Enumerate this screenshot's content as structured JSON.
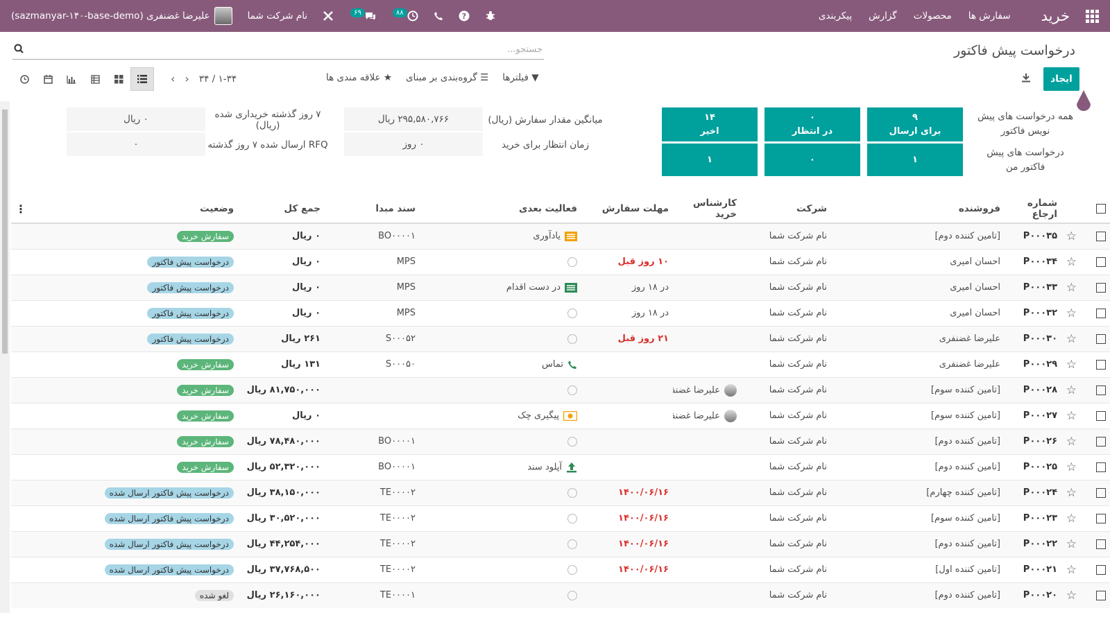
{
  "navbar": {
    "brand": "خرید",
    "menu": [
      "سفارش ها",
      "محصولات",
      "گزارش",
      "پیکربندی"
    ],
    "company": "نام شرکت شما",
    "user": "علیرضا غضنفری (sazmanyar-۱۴۰-base-demo)",
    "activity_count": "۸۸",
    "messages_count": "۶۹"
  },
  "control": {
    "title": "درخواست پیش فاکتور",
    "search_placeholder": "جستجو...",
    "create_label": "ایجاد",
    "filters_label": "فیلترها",
    "groupby_label": "گروه‌بندی بر مبنای",
    "favorites_label": "علاقه مندی ها",
    "pager": "۱-۳۴ / ۳۴"
  },
  "dashboard": {
    "label_all": "همه درخواست های پیش نویس فاکتور",
    "label_mine": "درخواست های پیش فاکتور من",
    "tiles": [
      {
        "count": "۹",
        "label": "برای ارسال",
        "mine": "۱"
      },
      {
        "count": "۰",
        "label": "در انتظار",
        "mine": "۰"
      },
      {
        "count": "۱۴",
        "label": "اخیر",
        "mine": "۱"
      }
    ],
    "stats": [
      {
        "label1": "میانگین مقدار سفارش (ریال)",
        "value1": "۲۹۵,۵۸۰,۷۶۶ ریال",
        "label2": "۷ روز گذشته خریداری شده (ریال)",
        "value2": "۰ ریال"
      },
      {
        "label1": "زمان انتظار برای خرید",
        "value1": "۰  روز",
        "label2": "RFQ ارسال شده ۷ روز گذشته",
        "value2": "۰"
      }
    ]
  },
  "table": {
    "headers": [
      "شماره ارجاع",
      "فروشنده",
      "شرکت",
      "کارشناس خرید",
      "مهلت سفارش",
      "فعالیت بعدی",
      "سند مبدا",
      "جمع کل",
      "وضعیت"
    ],
    "rows": [
      {
        "ref": "P۰۰۰۳۵",
        "vendor": "[تامین کننده دوم]",
        "company": "نام شرکت شما",
        "buyer": "",
        "deadline": "",
        "deadline_red": false,
        "activity": "یادآوری",
        "act_icon": "reminder",
        "source": "BO۰۰۰۰۱",
        "total": "۰ ریال",
        "status": "سفارش خرید",
        "status_type": "green"
      },
      {
        "ref": "P۰۰۰۳۴",
        "vendor": "احسان امیری",
        "company": "نام شرکت شما",
        "buyer": "",
        "deadline": "۱۰ روز قبل",
        "deadline_red": true,
        "activity": "",
        "act_icon": "clock",
        "source": "MPS",
        "total": "۰ ریال",
        "status": "درخواست پیش فاکتور",
        "status_type": "blue"
      },
      {
        "ref": "P۰۰۰۳۳",
        "vendor": "احسان امیری",
        "company": "نام شرکت شما",
        "buyer": "",
        "deadline": "در ۱۸ روز",
        "deadline_red": false,
        "activity": "در دست اقدام",
        "act_icon": "todo",
        "source": "MPS",
        "total": "۰ ریال",
        "status": "درخواست پیش فاکتور",
        "status_type": "blue"
      },
      {
        "ref": "P۰۰۰۳۲",
        "vendor": "احسان امیری",
        "company": "نام شرکت شما",
        "buyer": "",
        "deadline": "در ۱۸ روز",
        "deadline_red": false,
        "activity": "",
        "act_icon": "clock",
        "source": "MPS",
        "total": "۰ ریال",
        "status": "درخواست پیش فاکتور",
        "status_type": "blue"
      },
      {
        "ref": "P۰۰۰۳۰",
        "vendor": "علیرضا غضنفری",
        "company": "نام شرکت شما",
        "buyer": "",
        "deadline": "۲۱ روز قبل",
        "deadline_red": true,
        "activity": "",
        "act_icon": "clock",
        "source": "S۰۰۰۵۲",
        "total": "۲۶۱ ریال",
        "status": "درخواست پیش فاکتور",
        "status_type": "blue"
      },
      {
        "ref": "P۰۰۰۲۹",
        "vendor": "علیرضا غضنفری",
        "company": "نام شرکت شما",
        "buyer": "",
        "deadline": "",
        "deadline_red": false,
        "activity": "تماس",
        "act_icon": "phone",
        "source": "S۰۰۰۵۰",
        "total": "۱۳۱ ریال",
        "status": "سفارش خرید",
        "status_type": "green"
      },
      {
        "ref": "P۰۰۰۲۸",
        "vendor": "[تامین کننده سوم]",
        "company": "نام شرکت شما",
        "buyer": "علیرضا غضنفری",
        "deadline": "",
        "deadline_red": false,
        "activity": "",
        "act_icon": "clock",
        "source": "",
        "total": "۸۱,۷۵۰,۰۰۰ ریال",
        "status": "سفارش خرید",
        "status_type": "green"
      },
      {
        "ref": "P۰۰۰۲۷",
        "vendor": "[تامین کننده سوم]",
        "company": "نام شرکت شما",
        "buyer": "علیرضا غضنفری",
        "deadline": "",
        "deadline_red": false,
        "activity": "پیگیری چک",
        "act_icon": "money",
        "source": "",
        "total": "۰ ریال",
        "status": "سفارش خرید",
        "status_type": "green"
      },
      {
        "ref": "P۰۰۰۲۶",
        "vendor": "[تامین کننده دوم]",
        "company": "نام شرکت شما",
        "buyer": "",
        "deadline": "",
        "deadline_red": false,
        "activity": "",
        "act_icon": "clock",
        "source": "BO۰۰۰۰۱",
        "total": "۷۸,۴۸۰,۰۰۰ ریال",
        "status": "سفارش خرید",
        "status_type": "green"
      },
      {
        "ref": "P۰۰۰۲۵",
        "vendor": "[تامین کننده دوم]",
        "company": "نام شرکت شما",
        "buyer": "",
        "deadline": "",
        "deadline_red": false,
        "activity": "آپلود سند",
        "act_icon": "upload",
        "source": "BO۰۰۰۰۱",
        "total": "۵۲,۳۲۰,۰۰۰ ریال",
        "status": "سفارش خرید",
        "status_type": "green"
      },
      {
        "ref": "P۰۰۰۲۴",
        "vendor": "[تامین کننده چهارم]",
        "company": "نام شرکت شما",
        "buyer": "",
        "deadline": "۱۴۰۰/۰۶/۱۶",
        "deadline_red": true,
        "activity": "",
        "act_icon": "clock",
        "source": "TE۰۰۰۰۲",
        "total": "۳۸,۱۵۰,۰۰۰ ریال",
        "status": "درخواست پیش فاکتور ارسال شده",
        "status_type": "blue"
      },
      {
        "ref": "P۰۰۰۲۳",
        "vendor": "[تامین کننده سوم]",
        "company": "نام شرکت شما",
        "buyer": "",
        "deadline": "۱۴۰۰/۰۶/۱۶",
        "deadline_red": true,
        "activity": "",
        "act_icon": "clock",
        "source": "TE۰۰۰۰۲",
        "total": "۳۰,۵۲۰,۰۰۰ ریال",
        "status": "درخواست پیش فاکتور ارسال شده",
        "status_type": "blue"
      },
      {
        "ref": "P۰۰۰۲۲",
        "vendor": "[تامین کننده دوم]",
        "company": "نام شرکت شما",
        "buyer": "",
        "deadline": "۱۴۰۰/۰۶/۱۶",
        "deadline_red": true,
        "activity": "",
        "act_icon": "clock",
        "source": "TE۰۰۰۰۲",
        "total": "۴۴,۲۵۴,۰۰۰ ریال",
        "status": "درخواست پیش فاکتور ارسال شده",
        "status_type": "blue"
      },
      {
        "ref": "P۰۰۰۲۱",
        "vendor": "[تامین کننده اول]",
        "company": "نام شرکت شما",
        "buyer": "",
        "deadline": "۱۴۰۰/۰۶/۱۶",
        "deadline_red": true,
        "activity": "",
        "act_icon": "clock",
        "source": "TE۰۰۰۰۲",
        "total": "۳۷,۷۶۸,۵۰۰ ریال",
        "status": "درخواست پیش فاکتور ارسال شده",
        "status_type": "blue"
      },
      {
        "ref": "P۰۰۰۲۰",
        "vendor": "[تامین کننده دوم]",
        "company": "نام شرکت شما",
        "buyer": "",
        "deadline": "",
        "deadline_red": false,
        "activity": "",
        "act_icon": "clock",
        "source": "TE۰۰۰۰۱",
        "total": "۲۶,۱۶۰,۰۰۰ ریال",
        "status": "لغو شده",
        "status_type": "grey"
      }
    ]
  }
}
